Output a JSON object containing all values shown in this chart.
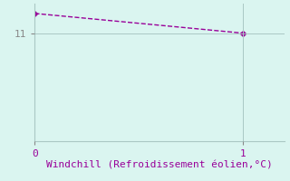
{
  "x": [
    0,
    1
  ],
  "y": [
    13.0,
    11.0
  ],
  "xlim": [
    0,
    1.2
  ],
  "ylim": [
    0,
    14.0
  ],
  "yticks": [
    11
  ],
  "xticks": [
    0,
    1
  ],
  "line_color": "#990099",
  "marker": "D",
  "marker_size": 3,
  "line_style": "--",
  "line_width": 1.0,
  "xlabel": "Windchill (Refroidissement éolien,°C)",
  "xlabel_fontsize": 8,
  "background_color": "#daf5f0",
  "grid_color": "#aac8c4",
  "tick_label_fontsize": 8,
  "tick_color": "#888888",
  "font_family": "monospace"
}
